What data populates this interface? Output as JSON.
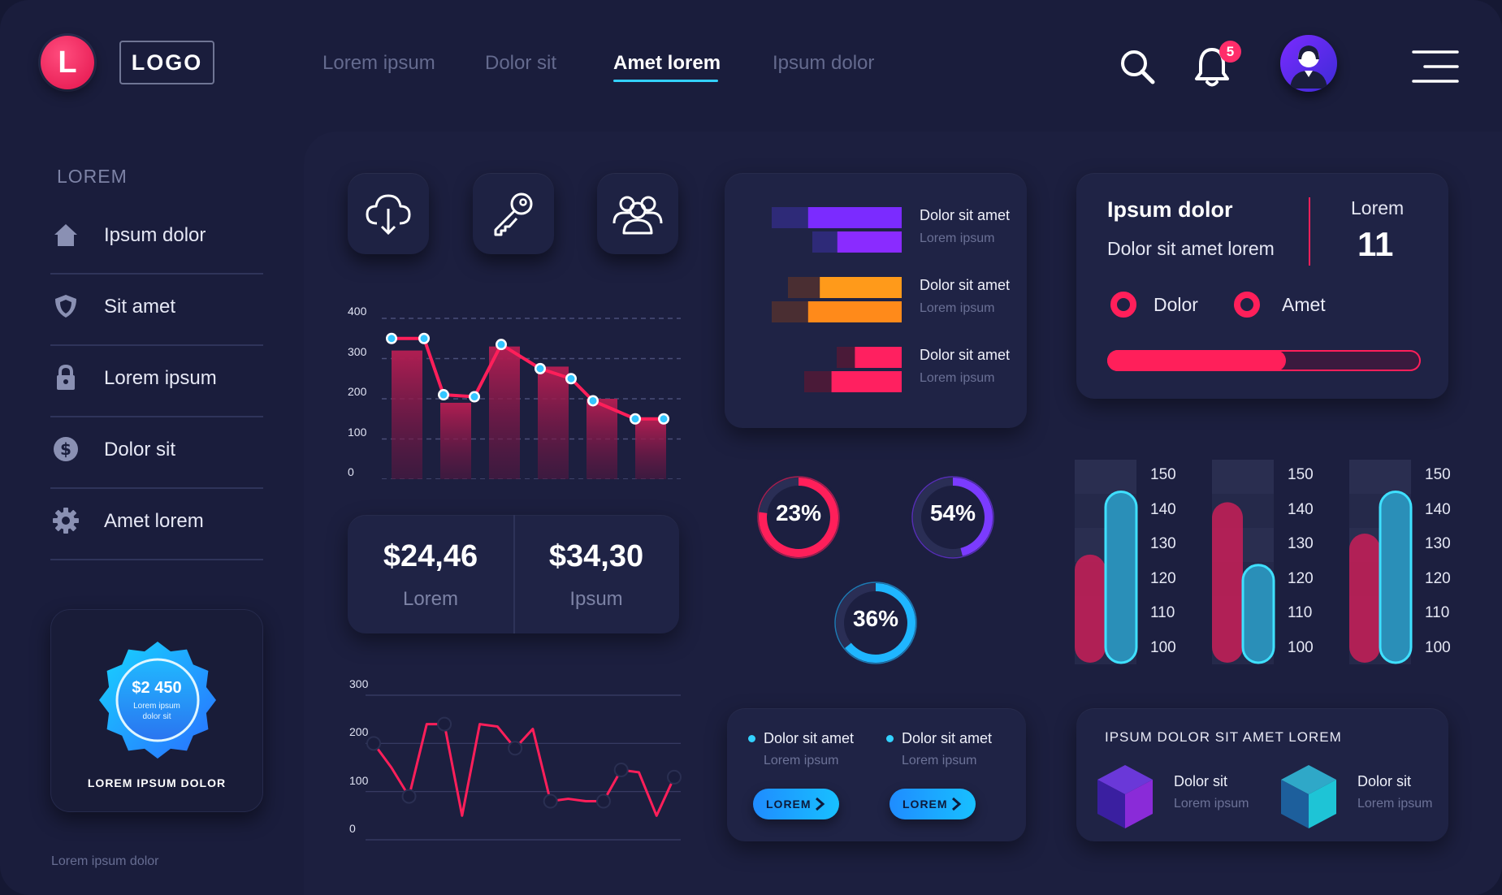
{
  "header": {
    "logo_letter": "L",
    "logo_text": "LOGO",
    "nav": [
      "Lorem ipsum",
      "Dolor sit",
      "Amet lorem",
      "Ipsum dolor"
    ],
    "active_nav_index": 2,
    "notification_count": "5",
    "icons": [
      "search-icon",
      "bell-icon",
      "avatar",
      "menu-icon"
    ]
  },
  "sidebar": {
    "heading": "LOREM",
    "items": [
      {
        "label": "Ipsum dolor",
        "icon": "home-icon"
      },
      {
        "label": "Sit amet",
        "icon": "shield-icon"
      },
      {
        "label": "Lorem ipsum",
        "icon": "lock-icon"
      },
      {
        "label": "Dolor sit",
        "icon": "dollar-icon"
      },
      {
        "label": "Amet lorem",
        "icon": "gear-icon"
      }
    ],
    "promo": {
      "amount": "$2 450",
      "sub_line1": "Lorem ipsum",
      "sub_line2": "dolor sit",
      "caption": "LOREM IPSUM DOLOR"
    },
    "footer": "Lorem ipsum dolor"
  },
  "quick_actions": [
    "cloud-download-icon",
    "key-icon",
    "users-icon"
  ],
  "money": [
    {
      "value": "$24,46",
      "label": "Lorem"
    },
    {
      "value": "$34,30",
      "label": "Ipsum"
    }
  ],
  "bar_lines": [
    {
      "title": "Dolor sit amet",
      "sub": "Lorem ipsum"
    },
    {
      "title": "Dolor sit amet",
      "sub": "Lorem ipsum"
    },
    {
      "title": "Dolor sit amet",
      "sub": "Lorem ipsum"
    }
  ],
  "donuts": [
    {
      "label": "23%",
      "value": 23,
      "color": "#ff1f5a"
    },
    {
      "label": "54%",
      "value": 54,
      "color": "#7b3bff"
    },
    {
      "label": "36%",
      "value": 36,
      "color": "#1fb6ff"
    }
  ],
  "info": {
    "title": "Ipsum dolor",
    "subtitle": "Dolor sit amet lorem",
    "stat_label": "Lorem",
    "stat_value": "11",
    "radios": [
      "Dolor",
      "Amet"
    ],
    "progress": 0.57
  },
  "list_cards": [
    {
      "title": "Dolor sit amet",
      "sub": "Lorem ipsum",
      "button": "LOREM"
    },
    {
      "title": "Dolor sit amet",
      "sub": "Lorem ipsum",
      "button": "LOREM"
    }
  ],
  "cube_section": {
    "heading": "IPSUM DOLOR  SIT AMET LOREM",
    "items": [
      {
        "title": "Dolor sit",
        "sub": "Lorem ipsum"
      },
      {
        "title": "Dolor sit",
        "sub": "Lorem ipsum"
      }
    ]
  },
  "colors": {
    "accent_pink": "#ff1f5a",
    "accent_cyan": "#33d1ff",
    "accent_purple": "#7b3bff",
    "orange": "#ff9a1a"
  },
  "chart_data": [
    {
      "type": "bar",
      "title": "",
      "ylim": [
        0,
        400
      ],
      "yticks": [
        "400",
        "300",
        "200",
        "100",
        "0"
      ],
      "bars": [
        320,
        190,
        330,
        280,
        200,
        150
      ],
      "line": [
        350,
        350,
        210,
        205,
        335,
        275,
        250,
        195,
        150,
        150
      ],
      "grid": true
    },
    {
      "type": "line",
      "title": "",
      "ylim": [
        0,
        300
      ],
      "yticks": [
        "300",
        "200",
        "100",
        "0"
      ],
      "values": [
        200,
        150,
        90,
        240,
        240,
        50,
        240,
        235,
        190,
        230,
        80,
        85,
        80,
        80,
        145,
        140,
        50,
        130
      ],
      "grid": true
    },
    {
      "type": "bar",
      "title": "",
      "orientation": "horizontal",
      "bars": [
        {
          "values": [
            0.8
          ],
          "color": "#7b2bff"
        },
        {
          "values": [
            0.55
          ],
          "color": "#8a2bff"
        },
        {
          "values": [
            0.7
          ],
          "color": "#ff9a1a"
        },
        {
          "values": [
            0.8
          ],
          "color": "#ff8a1a"
        },
        {
          "values": [
            0.4
          ],
          "color": "#ff2060"
        },
        {
          "values": [
            0.6
          ],
          "color": "#ff2060"
        }
      ]
    },
    {
      "type": "bar",
      "title": "",
      "yticks": [
        "150",
        "140",
        "130",
        "120",
        "110",
        "100"
      ],
      "ylim": [
        100,
        150
      ],
      "groups": [
        {
          "pink": 129,
          "cyan": 147
        },
        {
          "pink": 144,
          "cyan": 126
        },
        {
          "pink": 135,
          "cyan": 147
        }
      ]
    }
  ]
}
